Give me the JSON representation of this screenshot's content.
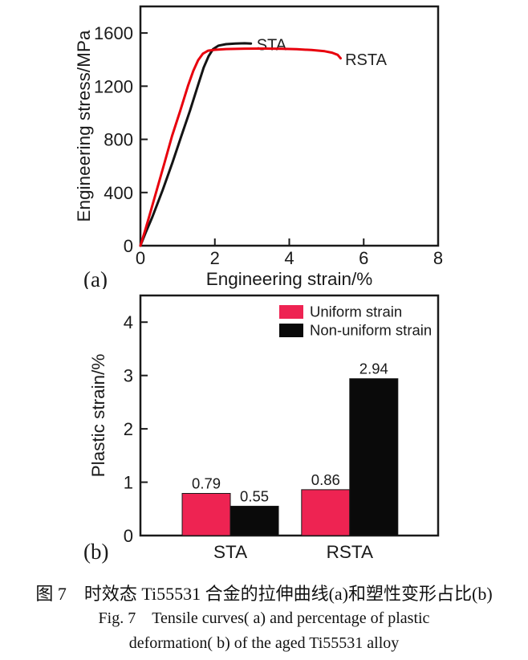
{
  "figure": {
    "caption_line1": "图 7　时效态 Ti55531 合金的拉伸曲线(a)和塑性变形占比(b)",
    "caption_line2": "Fig. 7　Tensile curves( a) and percentage of plastic",
    "caption_line3": "deformation( b) of the aged Ti55531 alloy"
  },
  "colors": {
    "ink": "#1a1a1a",
    "curve_black": "#141414",
    "curve_red": "#e8000d",
    "bar_red": "#ee2352",
    "bar_black": "#0a0a0a"
  },
  "chart_data": [
    {
      "type": "line",
      "panel_label": "(a)",
      "xlabel": "Engineering strain/%",
      "ylabel": "Engineering stress/MPa",
      "xlim": [
        0,
        8
      ],
      "ylim": [
        0,
        1800
      ],
      "xticks": [
        0,
        2,
        4,
        6,
        8
      ],
      "yticks": [
        0,
        400,
        800,
        1200,
        1600
      ],
      "grid": false,
      "series": [
        {
          "name": "STA",
          "color": "#141414",
          "label_at": [
            3.12,
            1512
          ],
          "points": [
            [
              0,
              0
            ],
            [
              0.15,
              105
            ],
            [
              0.32,
              215
            ],
            [
              0.6,
              420
            ],
            [
              0.86,
              625
            ],
            [
              1.1,
              825
            ],
            [
              1.33,
              1015
            ],
            [
              1.55,
              1210
            ],
            [
              1.7,
              1340
            ],
            [
              1.83,
              1425
            ],
            [
              1.95,
              1478
            ],
            [
              2.1,
              1505
            ],
            [
              2.3,
              1516
            ],
            [
              2.55,
              1521
            ],
            [
              2.8,
              1523
            ],
            [
              2.97,
              1521
            ]
          ]
        },
        {
          "name": "RSTA",
          "color": "#e8000d",
          "label_at": [
            5.5,
            1400
          ],
          "points": [
            [
              0,
              0
            ],
            [
              0.12,
              110
            ],
            [
              0.23,
              215
            ],
            [
              0.44,
              420
            ],
            [
              0.65,
              625
            ],
            [
              0.85,
              825
            ],
            [
              1.07,
              1015
            ],
            [
              1.28,
              1205
            ],
            [
              1.42,
              1315
            ],
            [
              1.55,
              1395
            ],
            [
              1.68,
              1445
            ],
            [
              1.82,
              1467
            ],
            [
              2.0,
              1474
            ],
            [
              2.3,
              1479
            ],
            [
              2.8,
              1482
            ],
            [
              3.3,
              1483
            ],
            [
              3.8,
              1481
            ],
            [
              4.2,
              1478
            ],
            [
              4.6,
              1472
            ],
            [
              4.95,
              1463
            ],
            [
              5.15,
              1452
            ],
            [
              5.3,
              1436
            ],
            [
              5.38,
              1410
            ]
          ]
        }
      ]
    },
    {
      "type": "bar",
      "panel_label": "(b)",
      "xlabel": "",
      "ylabel": "Plastic strain/%",
      "categories": [
        "STA",
        "RSTA"
      ],
      "ylim": [
        0,
        4.5
      ],
      "yticks": [
        0,
        1,
        2,
        3,
        4
      ],
      "grid": false,
      "legend_position": "top-center-inside",
      "series": [
        {
          "name": "Uniform strain",
          "color": "#ee2352",
          "values": [
            0.79,
            0.86
          ]
        },
        {
          "name": "Non-uniform strain",
          "color": "#0a0a0a",
          "values": [
            0.55,
            2.94
          ]
        }
      ]
    }
  ]
}
